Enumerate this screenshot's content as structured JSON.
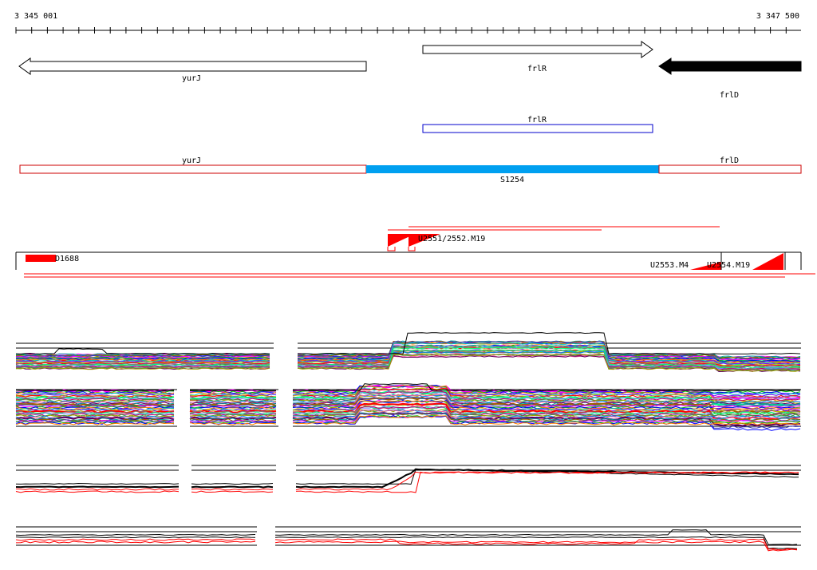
{
  "ruler": {
    "start_label": "3 345 001",
    "end_label": "3 347 500"
  },
  "genes": [
    {
      "name": "yurJ",
      "strand": "-"
    },
    {
      "name": "frlR",
      "strand": "+"
    },
    {
      "name": "frlD",
      "strand": "-"
    }
  ],
  "cds_box": {
    "label": "frlR"
  },
  "segments": [
    {
      "label": "yurJ"
    },
    {
      "label": "S1254"
    },
    {
      "label": "frlD"
    }
  ],
  "features": {
    "d1688": "D1688",
    "u2551_2552": "U2551/2552.M19",
    "u2553": "U2553.M4",
    "u2554": "U2554.M19"
  },
  "colors": {
    "gene_filled": "#000000",
    "cds_outline": "#0000cc",
    "segment_outline": "#cc0000",
    "segment_highlight": "#00a0f0",
    "feature_red": "#ff0000"
  }
}
